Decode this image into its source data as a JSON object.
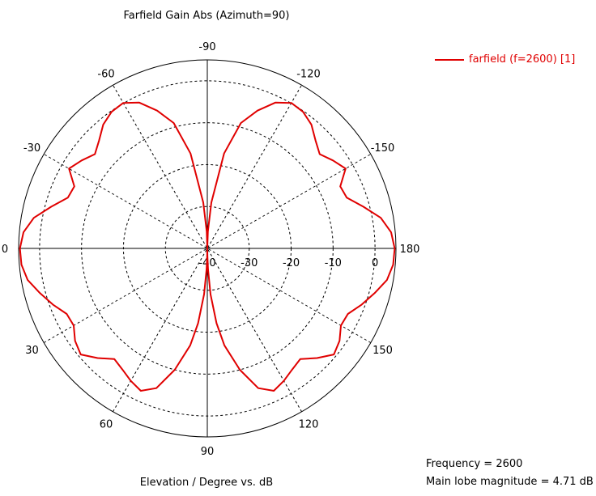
{
  "chart_data": {
    "type": "polar-line",
    "title": "Farfield Gain Abs (Azimuth=90)",
    "xlabel": "Elevation / Degree vs. dB",
    "angle_labels": [
      "0",
      "30",
      "60",
      "90",
      "120",
      "150",
      "180",
      "-150",
      "-120",
      "-90",
      "-60",
      "-30"
    ],
    "radial_ticks": [
      -40,
      -30,
      -20,
      -10,
      0
    ],
    "radial_range": [
      -40,
      5
    ],
    "grid": true,
    "legend_position": "top-right",
    "series": [
      {
        "name": "farfield (f=2600) [1]",
        "color": "#e00000",
        "angle": [
          0,
          5,
          10,
          15,
          20,
          25,
          30,
          35,
          40,
          45,
          50,
          55,
          60,
          65,
          70,
          75,
          80,
          83,
          86,
          88,
          89,
          90,
          91,
          92,
          94,
          97,
          100,
          105,
          110,
          115,
          120,
          125,
          130,
          135,
          140,
          145,
          150,
          155,
          160,
          165,
          170,
          175,
          180,
          185,
          190,
          195,
          200,
          205,
          210,
          215,
          220,
          225,
          230,
          235,
          240,
          245,
          250,
          255,
          260,
          265,
          268,
          270,
          272,
          275,
          280,
          285,
          290,
          295,
          300,
          305,
          310,
          315,
          320,
          325,
          330,
          335,
          340,
          345,
          350,
          355,
          360
        ],
        "gain_db": [
          4.7,
          4.5,
          3.5,
          1.3,
          -0.8,
          -3.0,
          -3.2,
          -1.5,
          -0.6,
          -3.0,
          -5.5,
          -4.7,
          -3.5,
          -2.5,
          -4.5,
          -10.0,
          -16.5,
          -22.0,
          -29.0,
          -35.0,
          -38.0,
          -40.0,
          -38.0,
          -35.0,
          -29.0,
          -22.0,
          -16.5,
          -10.0,
          -4.5,
          -2.5,
          -3.5,
          -4.7,
          -5.5,
          -3.0,
          -0.6,
          -1.5,
          -3.2,
          -3.0,
          -0.8,
          1.3,
          3.5,
          4.5,
          4.7,
          4.0,
          2.0,
          -1.5,
          -4.6,
          -5.0,
          -1.9,
          -3.4,
          -5.0,
          -3.5,
          -1.4,
          -0.2,
          0.1,
          -1.6,
          -5.0,
          -9.0,
          -17.0,
          -29.0,
          -36.0,
          -40.0,
          -36.0,
          -29.0,
          -17.0,
          -9.0,
          -5.0,
          -1.6,
          0.1,
          -0.2,
          -1.4,
          -3.5,
          -5.0,
          -3.4,
          -1.9,
          -5.0,
          -4.6,
          -1.5,
          2.0,
          4.0,
          4.7
        ]
      }
    ]
  },
  "legend": {
    "label": "farfield (f=2600) [1]"
  },
  "info": {
    "frequency": "Frequency = 2600",
    "main_lobe": "Main lobe magnitude = 4.71 dB"
  }
}
